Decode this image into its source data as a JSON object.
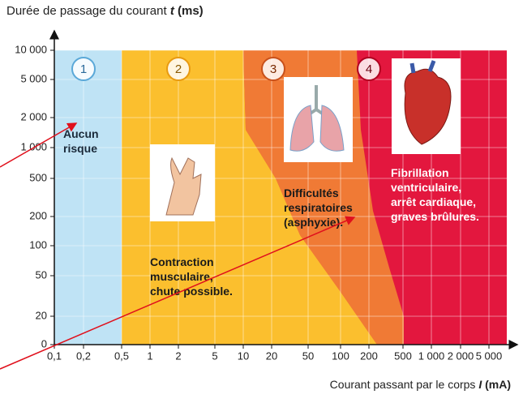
{
  "y_axis": {
    "title": [
      "Durée de passage du courant ",
      "t",
      " (ms)"
    ],
    "ticks": [
      "10 000",
      "5 000",
      "2 000",
      "1 000",
      "500",
      "200",
      "100",
      "50",
      "20",
      "0"
    ]
  },
  "x_axis": {
    "title": [
      "Courant passant par le corps ",
      "I",
      " (mA)"
    ],
    "ticks": [
      "0,1",
      "0,2",
      "0,5",
      "1",
      "2",
      "5",
      "10",
      "20",
      "50",
      "100",
      "200",
      "500",
      "1 000",
      "2 000",
      "5 000"
    ]
  },
  "zones": [
    {
      "number": "1",
      "text": [
        "Aucun",
        "risque"
      ]
    },
    {
      "number": "2",
      "text": [
        "Contraction",
        "musculaire,",
        "chute possible."
      ]
    },
    {
      "number": "3",
      "text": [
        "Difficultés",
        "respiratoires",
        "(asphyxie)."
      ]
    },
    {
      "number": "4",
      "text": [
        "Fibrillation",
        "ventriculaire,",
        "arrêt cardiaque,",
        "graves brûlures."
      ]
    }
  ]
}
